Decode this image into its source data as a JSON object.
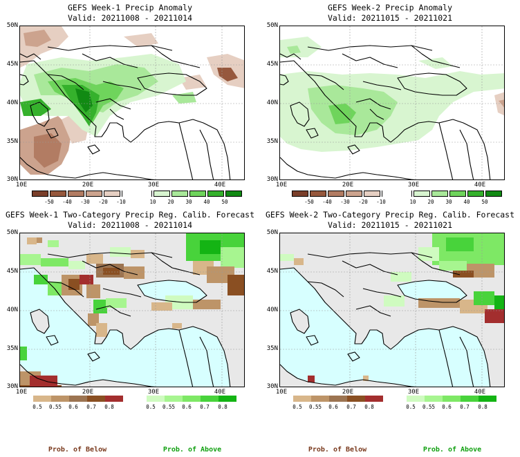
{
  "panels": [
    {
      "title": "GEFS Week-1 Precip Anomaly",
      "valid": "Valid: 20211008 - 20211014"
    },
    {
      "title": "GEFS Week-2 Precip Anomaly",
      "valid": "Valid: 20211015 - 20211021"
    },
    {
      "title": "GEFS Week-1 Two-Category Precip Reg. Calib. Forecast",
      "valid": "Valid: 20211008 - 20211014"
    },
    {
      "title": "GEFS Week-2 Two-Category Precip Reg. Calib. Forecast",
      "valid": "Valid: 20211015 - 20211021"
    }
  ],
  "axes": {
    "lat_labels": [
      "50N",
      "45N",
      "40N",
      "35N",
      "30N"
    ],
    "lon_labels": [
      "10E",
      "20E",
      "30E",
      "40E"
    ]
  },
  "anomaly_colorbar": {
    "labels": [
      "-50",
      "-40",
      "-30",
      "-20",
      "-10",
      "10",
      "20",
      "30",
      "40",
      "50"
    ],
    "colors": [
      "#7a3f2a",
      "#96583d",
      "#b27c63",
      "#cca38e",
      "#e6cfc2",
      "#ffffff",
      "#d8f5d0",
      "#a9e89a",
      "#6fd45c",
      "#35b12c",
      "#118a13"
    ]
  },
  "prob_below_colorbar": {
    "labels": [
      "0.5",
      "0.55",
      "0.6",
      "0.7",
      "0.8"
    ],
    "colors": [
      "#d8b68a",
      "#bd9468",
      "#9c7451",
      "#8a4f22",
      "#a32e2e"
    ]
  },
  "prob_above_colorbar": {
    "labels": [
      "0.5",
      "0.55",
      "0.6",
      "0.7",
      "0.8"
    ],
    "colors": [
      "#cffbc0",
      "#a7f590",
      "#7ee865",
      "#48d33b",
      "#14b414"
    ]
  },
  "category_labels": {
    "below": "Prob. of Below",
    "above": "Prob. of Above"
  },
  "colors": {
    "sea": "#d7ffff",
    "land_no_signal": "#e8e8e8",
    "below_label": "#7a3a1e",
    "above_label": "#12a012"
  }
}
